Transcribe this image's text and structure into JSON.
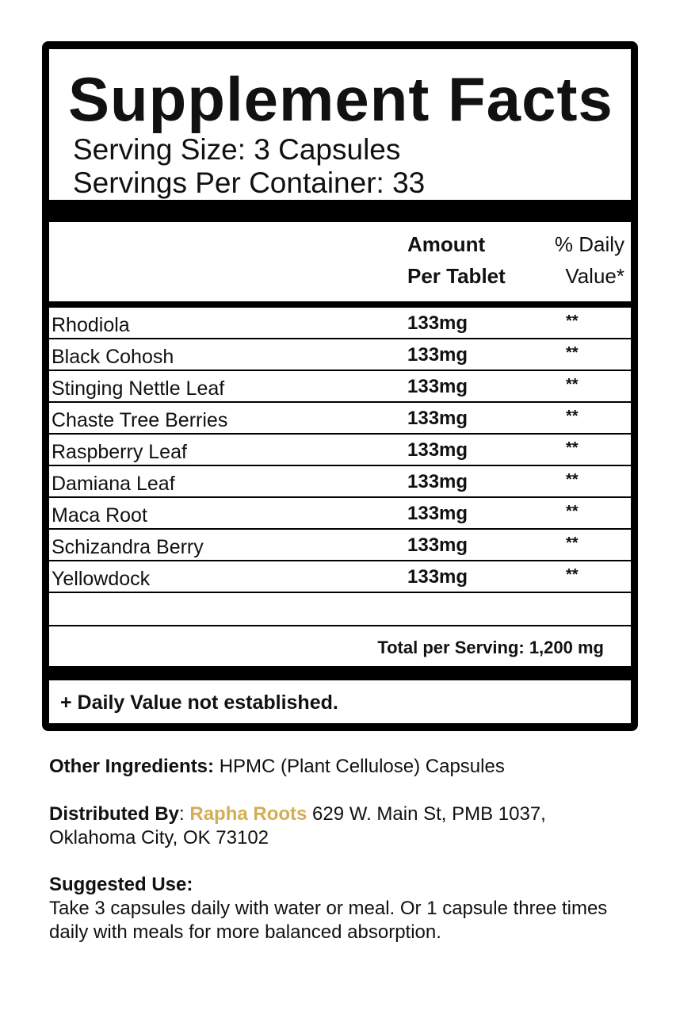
{
  "title": "Supplement Facts",
  "serving_size": "Serving Size: 3 Capsules",
  "servings_per_container": "Servings Per Container: 33",
  "columns": {
    "amount_line1": "Amount",
    "amount_line2": "Per Tablet",
    "dv_line1": "% Daily",
    "dv_line2": "Value*"
  },
  "ingredients": [
    {
      "name": "Rhodiola",
      "amount": "133mg",
      "dv": "**"
    },
    {
      "name": "Black Cohosh",
      "amount": "133mg",
      "dv": "**"
    },
    {
      "name": "Stinging Nettle Leaf",
      "amount": "133mg",
      "dv": "**"
    },
    {
      "name": "Chaste Tree Berries",
      "amount": "133mg",
      "dv": "**"
    },
    {
      "name": "Raspberry Leaf",
      "amount": "133mg",
      "dv": "**"
    },
    {
      "name": "Damiana Leaf",
      "amount": "133mg",
      "dv": "**"
    },
    {
      "name": "Maca Root",
      "amount": "133mg",
      "dv": "**"
    },
    {
      "name": "Schizandra Berry",
      "amount": "133mg",
      "dv": "**"
    },
    {
      "name": "Yellowdock",
      "amount": "133mg",
      "dv": "**"
    }
  ],
  "total": "Total per Serving: 1,200 mg",
  "footnote": "+ Daily Value not established.",
  "other_ingredients": {
    "label": "Other Ingredients:",
    "value": " HPMC (Plant Cellulose) Capsules"
  },
  "distributed": {
    "label": "Distributed By",
    "colon": ": ",
    "brand": "Rapha Roots",
    "address1": " 629 W. Main St, PMB 1037,",
    "address2": "Oklahoma City, OK 73102",
    "brand_color": "#d4ad55"
  },
  "suggested_use": {
    "label": "Suggested Use:",
    "text": "Take 3 capsules daily with water or meal. Or 1 capsule three times daily with meals for more balanced absorption."
  }
}
